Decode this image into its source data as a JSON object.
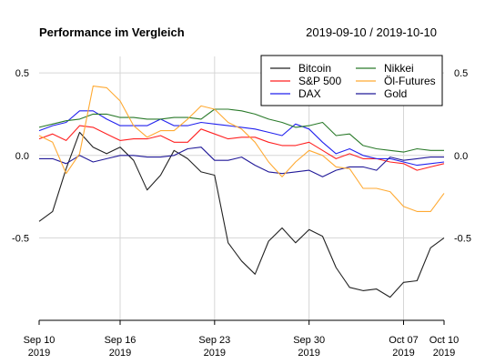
{
  "chart_data": {
    "type": "line",
    "title": "Performance im Vergleich",
    "subtitle": "2019-09-10 / 2019-10-10",
    "xlabel": "",
    "ylabel": "",
    "xlim": [
      "2019-09-10",
      "2019-10-10"
    ],
    "ylim": [
      -1.0,
      0.6
    ],
    "grid": true,
    "legend_position": "top-right",
    "x_ticks": [
      {
        "date": "2019-09-10",
        "label": [
          "Sep 10",
          "2019"
        ]
      },
      {
        "date": "2019-09-16",
        "label": [
          "Sep 16",
          "2019"
        ]
      },
      {
        "date": "2019-09-23",
        "label": [
          "Sep 23",
          "2019"
        ]
      },
      {
        "date": "2019-09-30",
        "label": [
          "Sep 30",
          "2019"
        ]
      },
      {
        "date": "2019-10-07",
        "label": [
          "Oct 07",
          "2019"
        ]
      },
      {
        "date": "2019-10-10",
        "label": [
          "Oct 10",
          "2019"
        ]
      }
    ],
    "y_ticks": [
      {
        "value": 0.5,
        "label": "0.5"
      },
      {
        "value": 0.0,
        "label": "0.0"
      },
      {
        "value": -0.5,
        "label": "-0.5"
      }
    ],
    "x": [
      "2019-09-10",
      "2019-09-11",
      "2019-09-12",
      "2019-09-13",
      "2019-09-14",
      "2019-09-15",
      "2019-09-16",
      "2019-09-17",
      "2019-09-18",
      "2019-09-19",
      "2019-09-20",
      "2019-09-21",
      "2019-09-22",
      "2019-09-23",
      "2019-09-24",
      "2019-09-25",
      "2019-09-26",
      "2019-09-27",
      "2019-09-28",
      "2019-09-29",
      "2019-09-30",
      "2019-10-01",
      "2019-10-02",
      "2019-10-03",
      "2019-10-04",
      "2019-10-05",
      "2019-10-06",
      "2019-10-07",
      "2019-10-08",
      "2019-10-09",
      "2019-10-10"
    ],
    "series": [
      {
        "name": "Bitcoin",
        "color": "#222222",
        "values": [
          -0.4,
          -0.34,
          -0.08,
          0.14,
          0.05,
          0.01,
          0.05,
          -0.03,
          -0.21,
          -0.12,
          0.03,
          -0.02,
          -0.1,
          -0.12,
          -0.53,
          -0.64,
          -0.72,
          -0.52,
          -0.44,
          -0.53,
          -0.45,
          -0.49,
          -0.68,
          -0.8,
          -0.82,
          -0.81,
          -0.86,
          -0.77,
          -0.76,
          -0.56,
          -0.5
        ]
      },
      {
        "name": "S&P 500",
        "color": "#ff2222",
        "values": [
          0.1,
          0.13,
          0.09,
          0.18,
          0.17,
          0.13,
          0.09,
          0.1,
          0.1,
          0.12,
          0.08,
          0.08,
          0.16,
          0.13,
          0.1,
          0.11,
          0.11,
          0.08,
          0.06,
          0.06,
          0.08,
          0.03,
          -0.02,
          0.01,
          -0.02,
          -0.02,
          -0.04,
          -0.05,
          -0.09,
          -0.07,
          -0.05
        ]
      },
      {
        "name": "DAX",
        "color": "#2222ee",
        "values": [
          0.15,
          0.18,
          0.2,
          0.27,
          0.27,
          0.22,
          0.18,
          0.18,
          0.18,
          0.22,
          0.18,
          0.18,
          0.2,
          0.19,
          0.18,
          0.17,
          0.16,
          0.14,
          0.12,
          0.19,
          0.16,
          0.08,
          0.01,
          0.04,
          0.0,
          -0.02,
          -0.02,
          -0.04,
          -0.06,
          -0.05,
          -0.04
        ]
      },
      {
        "name": "Gold",
        "color": "#221a99",
        "values": [
          -0.02,
          -0.02,
          -0.05,
          0.0,
          -0.04,
          -0.02,
          0.0,
          0.0,
          -0.01,
          -0.01,
          0.0,
          0.04,
          0.05,
          -0.03,
          -0.03,
          -0.01,
          -0.06,
          -0.1,
          -0.11,
          -0.1,
          -0.09,
          -0.13,
          -0.09,
          -0.07,
          -0.07,
          -0.09,
          -0.01,
          -0.03,
          -0.02,
          -0.01,
          -0.01
        ]
      },
      {
        "name": "Nikkei",
        "color": "#2a7a2a",
        "values": [
          0.17,
          0.19,
          0.21,
          0.22,
          0.25,
          0.25,
          0.23,
          0.23,
          0.22,
          0.22,
          0.23,
          0.23,
          0.22,
          0.28,
          0.28,
          0.27,
          0.25,
          0.22,
          0.2,
          0.17,
          0.18,
          0.2,
          0.12,
          0.13,
          0.06,
          0.04,
          0.03,
          0.02,
          0.04,
          0.03,
          0.03
        ]
      },
      {
        "name": "Öl-Futures",
        "color": "#ffaa33",
        "values": [
          0.12,
          0.08,
          -0.11,
          0.01,
          0.42,
          0.41,
          0.33,
          0.18,
          0.11,
          0.15,
          0.15,
          0.22,
          0.3,
          0.28,
          0.2,
          0.16,
          0.08,
          -0.04,
          -0.13,
          -0.04,
          0.03,
          0.0,
          -0.07,
          -0.08,
          -0.2,
          -0.2,
          -0.22,
          -0.31,
          -0.34,
          -0.34,
          -0.23
        ]
      }
    ]
  }
}
